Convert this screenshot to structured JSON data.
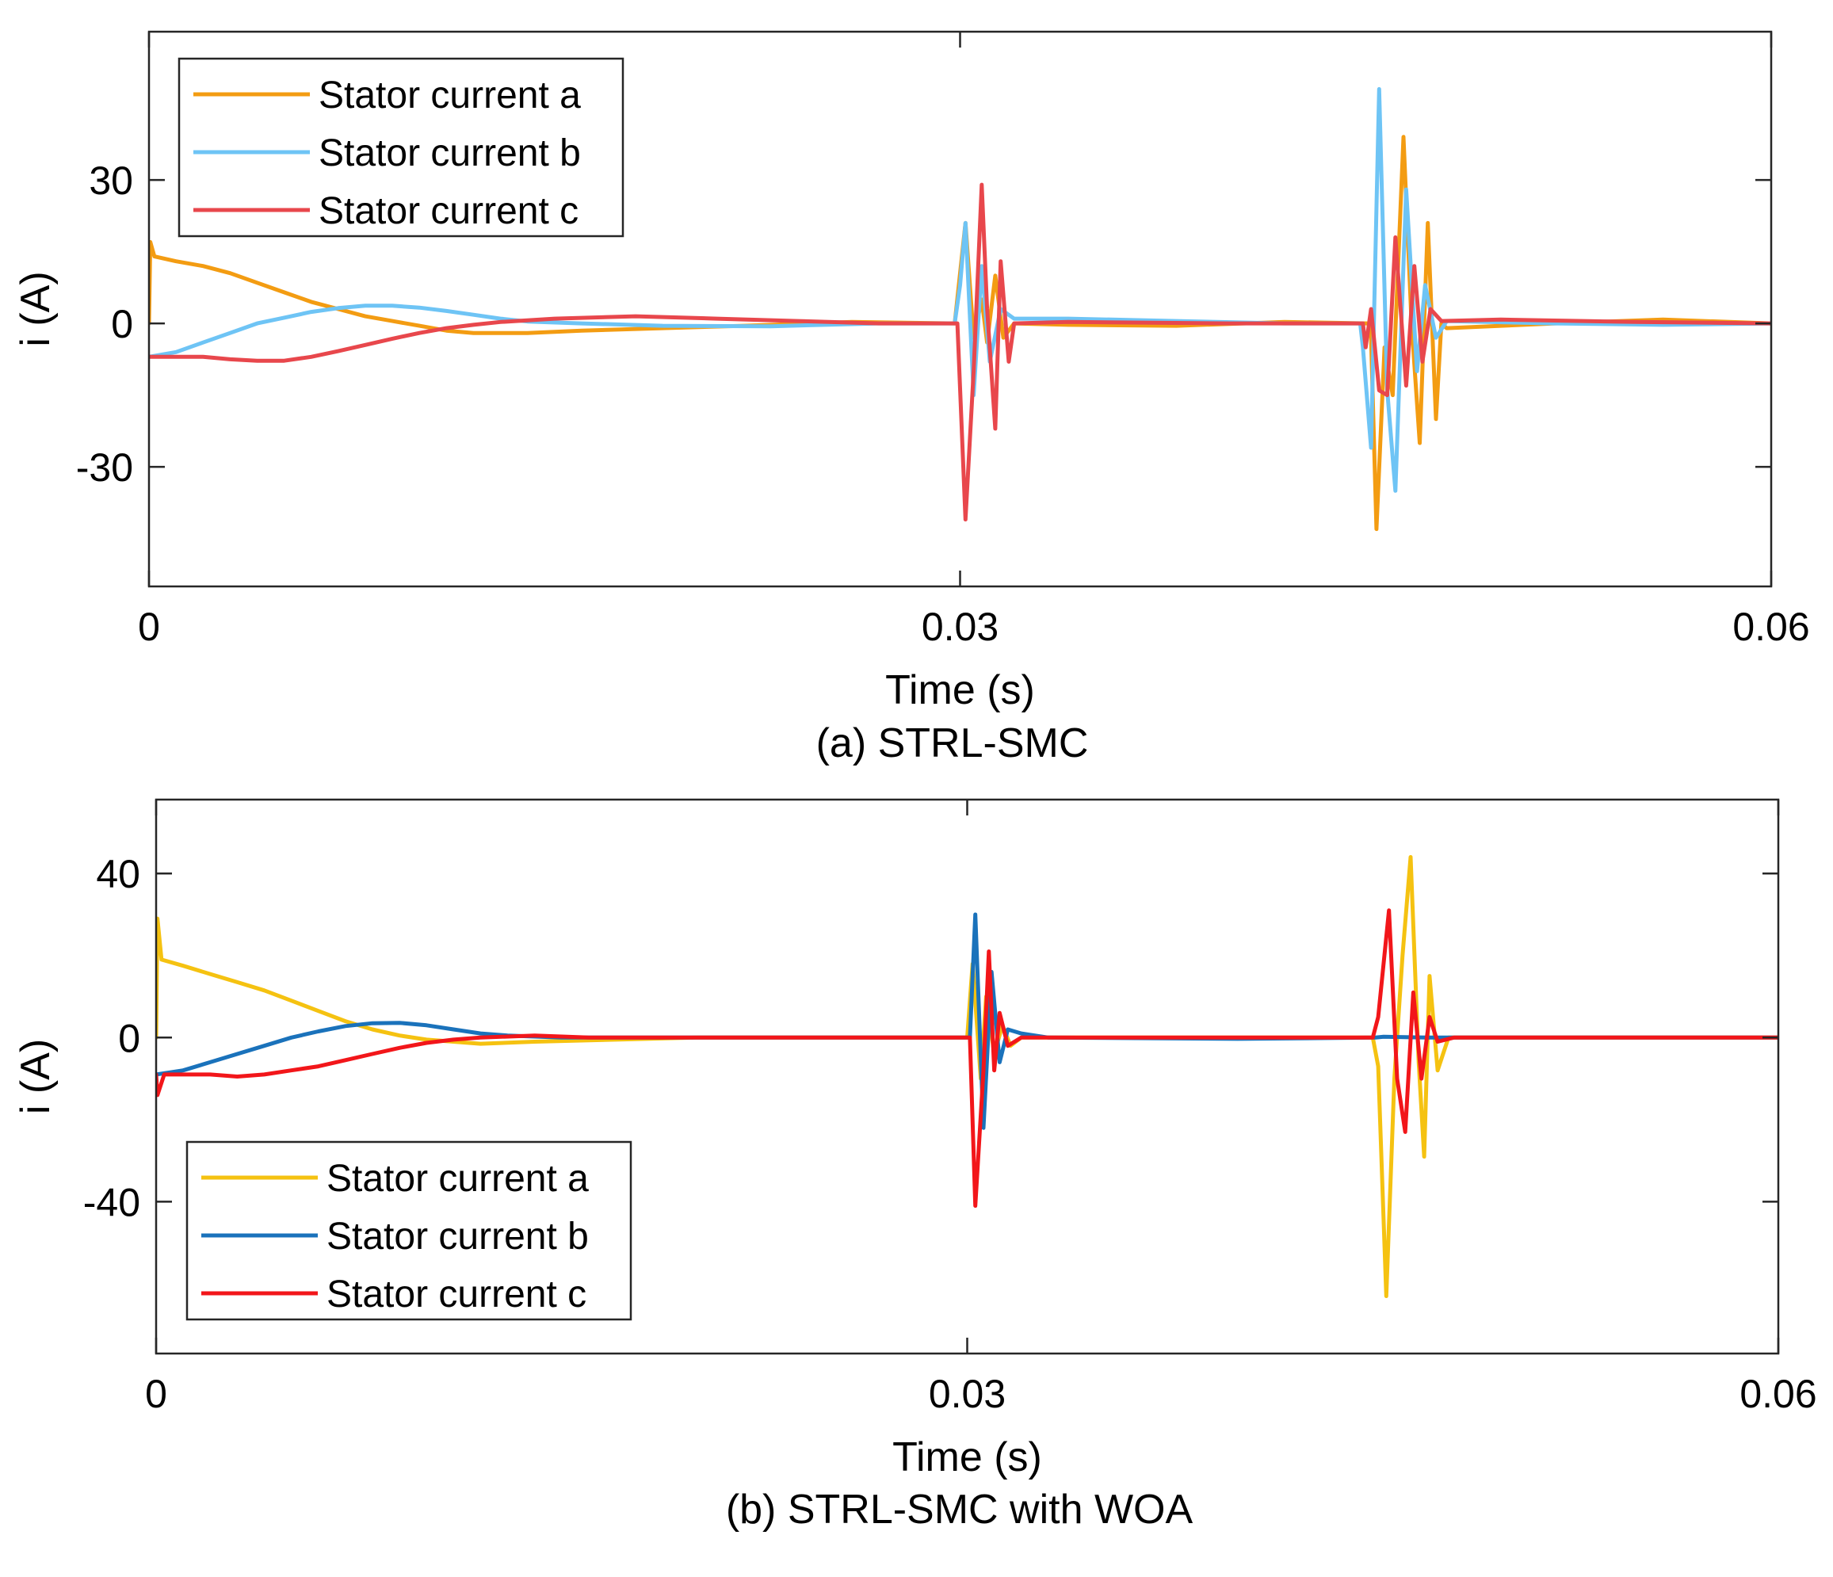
{
  "chart_data": [
    {
      "type": "line",
      "caption": "(a) STRL-SMC",
      "xlabel": "Time (s)",
      "ylabel": "i (A)",
      "xlim": [
        0,
        0.06
      ],
      "ylim": [
        -55,
        61
      ],
      "xticks": [
        0,
        0.03,
        0.06
      ],
      "xtick_labels": [
        "0",
        "0.03",
        "0.06"
      ],
      "yticks": [
        30,
        0,
        -30
      ],
      "ytick_labels": [
        "30",
        "0",
        "-30"
      ],
      "grid": false,
      "legend_position": "top-left",
      "series": [
        {
          "name": "Stator current a",
          "color": "#F39C12",
          "points": [
            [
              0,
              0
            ],
            [
              5e-05,
              17
            ],
            [
              0.0002,
              14
            ],
            [
              0.001,
              13
            ],
            [
              0.002,
              12
            ],
            [
              0.003,
              10.5
            ],
            [
              0.004,
              8.5
            ],
            [
              0.005,
              6.5
            ],
            [
              0.006,
              4.5
            ],
            [
              0.007,
              3
            ],
            [
              0.008,
              1.5
            ],
            [
              0.009,
              0.5
            ],
            [
              0.01,
              -0.5
            ],
            [
              0.011,
              -1.5
            ],
            [
              0.012,
              -2
            ],
            [
              0.014,
              -2
            ],
            [
              0.016,
              -1.5
            ],
            [
              0.019,
              -1
            ],
            [
              0.022,
              -0.5
            ],
            [
              0.026,
              0.3
            ],
            [
              0.0298,
              0
            ],
            [
              0.0302,
              21
            ],
            [
              0.0305,
              -3
            ],
            [
              0.0308,
              5
            ],
            [
              0.031,
              -4
            ],
            [
              0.0313,
              10
            ],
            [
              0.0316,
              -3
            ],
            [
              0.032,
              0
            ],
            [
              0.034,
              -0.3
            ],
            [
              0.038,
              -0.5
            ],
            [
              0.042,
              0.3
            ],
            [
              0.0451,
              0
            ],
            [
              0.0452,
              -3
            ],
            [
              0.0454,
              -43
            ],
            [
              0.0457,
              -5
            ],
            [
              0.046,
              -15
            ],
            [
              0.0464,
              39
            ],
            [
              0.0467,
              0
            ],
            [
              0.047,
              -25
            ],
            [
              0.0473,
              21
            ],
            [
              0.0476,
              -20
            ],
            [
              0.0478,
              0
            ],
            [
              0.048,
              -1
            ],
            [
              0.052,
              0
            ],
            [
              0.056,
              0.8
            ],
            [
              0.06,
              0
            ]
          ]
        },
        {
          "name": "Stator current b",
          "color": "#6EC4F5",
          "points": [
            [
              0,
              -7
            ],
            [
              0.001,
              -6
            ],
            [
              0.002,
              -4
            ],
            [
              0.003,
              -2
            ],
            [
              0.004,
              0
            ],
            [
              0.005,
              1.2
            ],
            [
              0.006,
              2.4
            ],
            [
              0.007,
              3.2
            ],
            [
              0.008,
              3.7
            ],
            [
              0.009,
              3.7
            ],
            [
              0.01,
              3.3
            ],
            [
              0.011,
              2.6
            ],
            [
              0.012,
              1.8
            ],
            [
              0.013,
              1
            ],
            [
              0.014,
              0.4
            ],
            [
              0.016,
              0
            ],
            [
              0.019,
              -0.5
            ],
            [
              0.023,
              -0.6
            ],
            [
              0.027,
              0
            ],
            [
              0.0298,
              0
            ],
            [
              0.03,
              8
            ],
            [
              0.0302,
              21
            ],
            [
              0.0305,
              -15
            ],
            [
              0.0308,
              12
            ],
            [
              0.0311,
              -8
            ],
            [
              0.0315,
              3
            ],
            [
              0.032,
              1
            ],
            [
              0.034,
              1
            ],
            [
              0.038,
              0.5
            ],
            [
              0.042,
              0
            ],
            [
              0.0448,
              0
            ],
            [
              0.0449,
              -5
            ],
            [
              0.0452,
              -26
            ],
            [
              0.0455,
              49
            ],
            [
              0.0458,
              -14
            ],
            [
              0.0461,
              -35
            ],
            [
              0.0465,
              28
            ],
            [
              0.0469,
              -10
            ],
            [
              0.0472,
              8
            ],
            [
              0.0476,
              -3
            ],
            [
              0.048,
              0.5
            ],
            [
              0.052,
              0
            ],
            [
              0.056,
              -0.3
            ],
            [
              0.06,
              0
            ]
          ]
        },
        {
          "name": "Stator current c",
          "color": "#E8474C",
          "points": [
            [
              0,
              -7
            ],
            [
              0.001,
              -7
            ],
            [
              0.002,
              -7
            ],
            [
              0.003,
              -7.5
            ],
            [
              0.004,
              -7.8
            ],
            [
              0.005,
              -7.8
            ],
            [
              0.006,
              -7
            ],
            [
              0.007,
              -5.8
            ],
            [
              0.008,
              -4.5
            ],
            [
              0.009,
              -3.2
            ],
            [
              0.01,
              -2
            ],
            [
              0.011,
              -1
            ],
            [
              0.012,
              -0.3
            ],
            [
              0.013,
              0.3
            ],
            [
              0.015,
              1
            ],
            [
              0.018,
              1.5
            ],
            [
              0.021,
              1
            ],
            [
              0.024,
              0.5
            ],
            [
              0.027,
              0
            ],
            [
              0.0299,
              0
            ],
            [
              0.0302,
              -41
            ],
            [
              0.0305,
              -10
            ],
            [
              0.0308,
              29
            ],
            [
              0.031,
              3
            ],
            [
              0.0313,
              -22
            ],
            [
              0.0315,
              13
            ],
            [
              0.0318,
              -8
            ],
            [
              0.032,
              0
            ],
            [
              0.034,
              0.3
            ],
            [
              0.04,
              0
            ],
            [
              0.0449,
              0
            ],
            [
              0.045,
              -5
            ],
            [
              0.0452,
              3
            ],
            [
              0.0455,
              -14
            ],
            [
              0.0458,
              -15
            ],
            [
              0.0461,
              18
            ],
            [
              0.0465,
              -13
            ],
            [
              0.0468,
              12
            ],
            [
              0.0471,
              -8
            ],
            [
              0.0474,
              3
            ],
            [
              0.0478,
              0.5
            ],
            [
              0.05,
              0.8
            ],
            [
              0.055,
              0.3
            ],
            [
              0.06,
              0
            ]
          ]
        }
      ]
    },
    {
      "type": "line",
      "caption": "(b) STRL-SMC with WOA",
      "xlabel": "Time (s)",
      "ylabel": "i (A)",
      "xlim": [
        0,
        0.06
      ],
      "ylim": [
        -77,
        58
      ],
      "xticks": [
        0,
        0.03,
        0.06
      ],
      "xtick_labels": [
        "0",
        "0.03",
        "0.06"
      ],
      "yticks": [
        40,
        0,
        -40
      ],
      "ytick_labels": [
        "40",
        "0",
        "-40"
      ],
      "grid": false,
      "legend_position": "bottom-left",
      "series": [
        {
          "name": "Stator current a",
          "color": "#F5C211",
          "points": [
            [
              0,
              0
            ],
            [
              5e-05,
              29
            ],
            [
              0.0002,
              19
            ],
            [
              0.001,
              17.5
            ],
            [
              0.002,
              15.5
            ],
            [
              0.003,
              13.5
            ],
            [
              0.004,
              11.5
            ],
            [
              0.005,
              9
            ],
            [
              0.006,
              6.5
            ],
            [
              0.007,
              4
            ],
            [
              0.008,
              2
            ],
            [
              0.009,
              0.5
            ],
            [
              0.01,
              -0.5
            ],
            [
              0.012,
              -1.5
            ],
            [
              0.014,
              -1
            ],
            [
              0.017,
              -0.5
            ],
            [
              0.02,
              0
            ],
            [
              0.029,
              0
            ],
            [
              0.03,
              0
            ],
            [
              0.0302,
              18
            ],
            [
              0.0305,
              -10
            ],
            [
              0.0307,
              10
            ],
            [
              0.031,
              -4
            ],
            [
              0.0313,
              3
            ],
            [
              0.0316,
              -2
            ],
            [
              0.032,
              0
            ],
            [
              0.045,
              0
            ],
            [
              0.0452,
              -7
            ],
            [
              0.0455,
              -63
            ],
            [
              0.0458,
              -10
            ],
            [
              0.0461,
              20
            ],
            [
              0.0464,
              44
            ],
            [
              0.0467,
              -6
            ],
            [
              0.0469,
              -29
            ],
            [
              0.0471,
              15
            ],
            [
              0.0474,
              -8
            ],
            [
              0.0478,
              0
            ],
            [
              0.05,
              0
            ],
            [
              0.06,
              0
            ]
          ]
        },
        {
          "name": "Stator current b",
          "color": "#1A72BB",
          "points": [
            [
              0,
              -9
            ],
            [
              0.001,
              -8
            ],
            [
              0.002,
              -6
            ],
            [
              0.003,
              -4
            ],
            [
              0.004,
              -2
            ],
            [
              0.005,
              0
            ],
            [
              0.006,
              1.5
            ],
            [
              0.007,
              2.8
            ],
            [
              0.008,
              3.5
            ],
            [
              0.009,
              3.6
            ],
            [
              0.01,
              3
            ],
            [
              0.011,
              2
            ],
            [
              0.012,
              1
            ],
            [
              0.013,
              0.5
            ],
            [
              0.015,
              0
            ],
            [
              0.02,
              0
            ],
            [
              0.029,
              0
            ],
            [
              0.0301,
              0
            ],
            [
              0.0303,
              30
            ],
            [
              0.0306,
              -22
            ],
            [
              0.0309,
              16
            ],
            [
              0.0312,
              -6
            ],
            [
              0.0315,
              2
            ],
            [
              0.032,
              1
            ],
            [
              0.033,
              0
            ],
            [
              0.04,
              -0.3
            ],
            [
              0.0451,
              0
            ],
            [
              0.0454,
              0.2
            ],
            [
              0.047,
              0
            ],
            [
              0.05,
              0
            ],
            [
              0.06,
              0
            ]
          ]
        },
        {
          "name": "Stator current c",
          "color": "#F2161A",
          "points": [
            [
              0,
              -9
            ],
            [
              5e-05,
              -14
            ],
            [
              0.0003,
              -9
            ],
            [
              0.002,
              -9
            ],
            [
              0.003,
              -9.5
            ],
            [
              0.004,
              -9
            ],
            [
              0.005,
              -8
            ],
            [
              0.006,
              -7
            ],
            [
              0.007,
              -5.5
            ],
            [
              0.008,
              -4
            ],
            [
              0.009,
              -2.5
            ],
            [
              0.01,
              -1.3
            ],
            [
              0.011,
              -0.5
            ],
            [
              0.012,
              0
            ],
            [
              0.014,
              0.5
            ],
            [
              0.016,
              0
            ],
            [
              0.029,
              0
            ],
            [
              0.0301,
              0
            ],
            [
              0.0303,
              -41
            ],
            [
              0.0306,
              -8
            ],
            [
              0.0308,
              21
            ],
            [
              0.031,
              -8
            ],
            [
              0.0312,
              6
            ],
            [
              0.0315,
              -2
            ],
            [
              0.032,
              0
            ],
            [
              0.045,
              0
            ],
            [
              0.0452,
              5
            ],
            [
              0.0456,
              31
            ],
            [
              0.0459,
              -10
            ],
            [
              0.0462,
              -23
            ],
            [
              0.0465,
              11
            ],
            [
              0.0468,
              -10
            ],
            [
              0.0471,
              5
            ],
            [
              0.0474,
              -1
            ],
            [
              0.048,
              0
            ],
            [
              0.06,
              0
            ]
          ]
        }
      ]
    }
  ]
}
